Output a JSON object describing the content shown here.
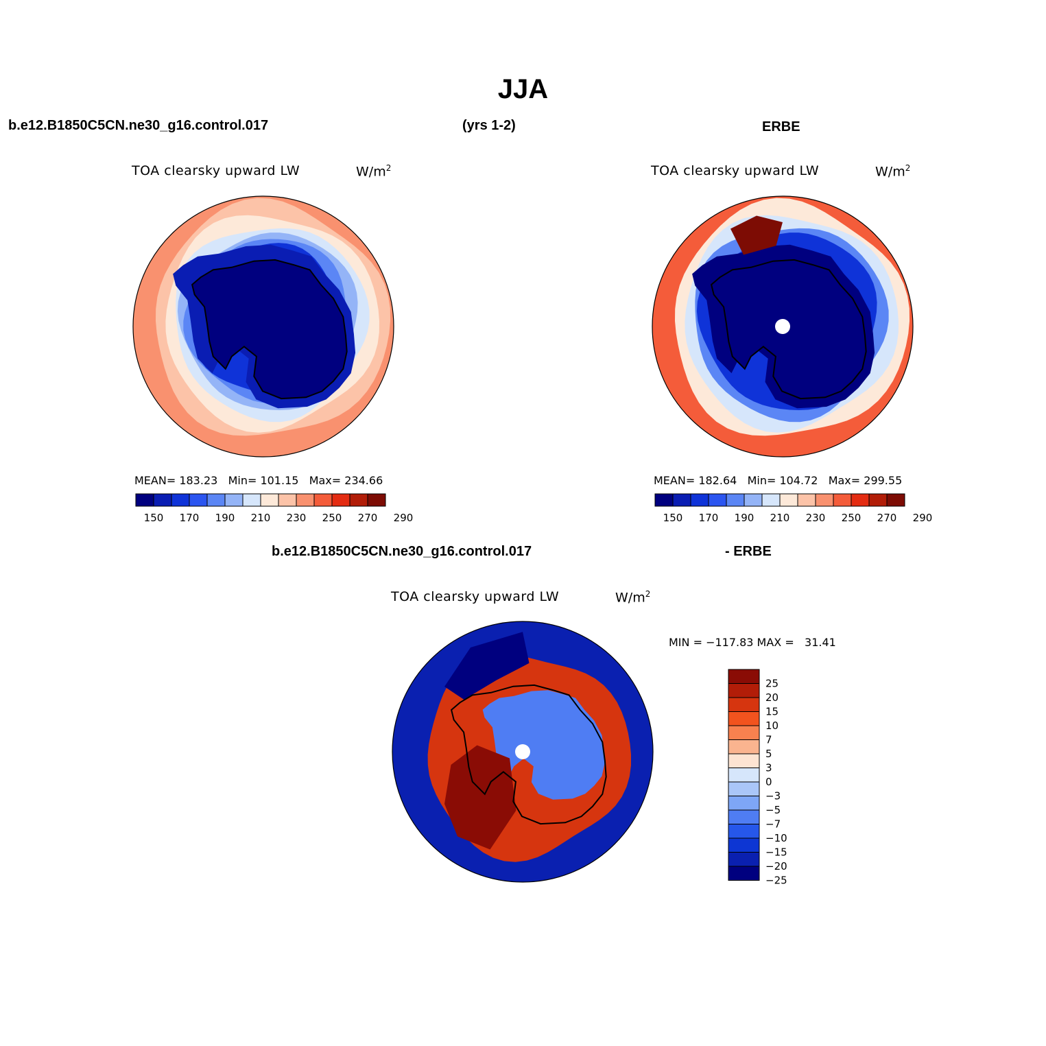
{
  "page": {
    "title": "JJA",
    "case_name": "b.e12.B1850C5CN.ne30_g16.control.017",
    "years": "(yrs 1-2)",
    "obs_name": "ERBE",
    "diff_case_name": "b.e12.B1850C5CN.ne30_g16.control.017",
    "diff_suffix": "- ERBE"
  },
  "panels": {
    "model": {
      "variable": "TOA clearsky upward LW",
      "units_base": "W/m",
      "units_exp": "2",
      "stats": "MEAN= 183.23   Min= 101.15   Max= 234.66"
    },
    "obs": {
      "variable": "TOA clearsky upward LW",
      "units_base": "W/m",
      "units_exp": "2",
      "stats": "MEAN= 182.64   Min= 104.72   Max= 299.55"
    },
    "diff": {
      "variable": "TOA clearsky upward LW",
      "units_base": "W/m",
      "units_exp": "2",
      "stats": "MIN = −117.83 MAX =   31.41"
    }
  },
  "colorbars": {
    "abs_colors": [
      "#00007f",
      "#0a1db3",
      "#0f33d8",
      "#2b55f0",
      "#5b86f5",
      "#94b4f7",
      "#d6e6fb",
      "#fde9d9",
      "#fcc3a8",
      "#f9916f",
      "#f45c3a",
      "#e42c12",
      "#b21d08",
      "#7d0c04"
    ],
    "abs_labels": [
      "150",
      "170",
      "190",
      "210",
      "230",
      "250",
      "270",
      "290"
    ],
    "diff_colors": [
      "#8a0c05",
      "#b21d08",
      "#d6350f",
      "#f2531e",
      "#f8814f",
      "#fab48f",
      "#fde4d2",
      "#d6e6fb",
      "#aac6f8",
      "#7ea6f6",
      "#4f7df3",
      "#2657ea",
      "#0d36d3",
      "#0a20b0",
      "#00007f"
    ],
    "diff_labels": [
      "25",
      "20",
      "15",
      "10",
      "7",
      "5",
      "3",
      "0",
      "−3",
      "−5",
      "−7",
      "−10",
      "−15",
      "−20",
      "−25"
    ]
  },
  "map_fields": {
    "model": {
      "ice_value": 105,
      "shelf_value": 150,
      "ring_values": [
        165,
        180,
        195,
        205,
        215,
        226
      ],
      "outer_value": 232
    },
    "obs": {
      "ice_value": 110,
      "shelf_value": 145,
      "ring_values": [
        165,
        185,
        200,
        215
      ],
      "outer_value": 240,
      "warm_patch_value": 285
    },
    "diff": {
      "interior_pos": 12,
      "interior_neg": -6,
      "ring_value": 18,
      "outer_neg": -18,
      "strong_neg": -30,
      "strong_pos": 28
    }
  }
}
